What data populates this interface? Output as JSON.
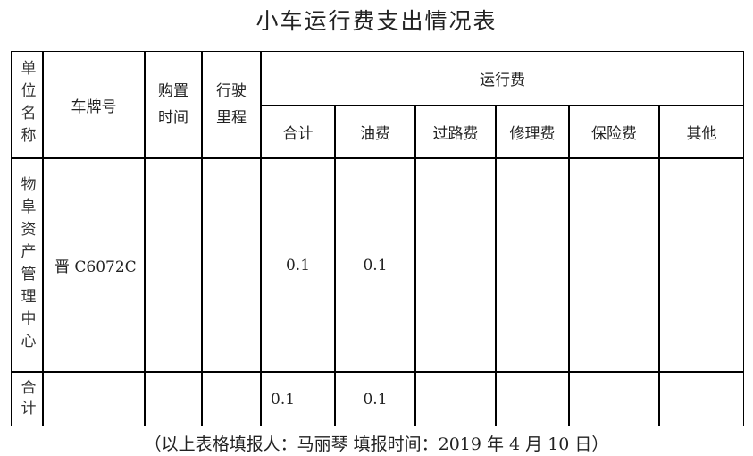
{
  "title": "小车运行费支出情况表",
  "headers": {
    "unit_name": "单位名称",
    "plate": "车牌号",
    "purchase_time": [
      "购置",
      "时间"
    ],
    "mileage": [
      "行驶",
      "里程"
    ],
    "operating_cost": "运行费",
    "sub": [
      "合计",
      "油费",
      "过路费",
      "修理费",
      "保险费",
      "其他"
    ]
  },
  "rows": [
    {
      "unit": "物阜资产管理中心",
      "plate": "晋 C6072C",
      "purchase_time": "",
      "mileage": "",
      "total": "0.1",
      "fuel": "0.1",
      "toll": "",
      "repair": "",
      "insurance": "",
      "other": ""
    }
  ],
  "summary": {
    "label": "合计",
    "total": "0.1",
    "fuel": "0.1"
  },
  "footer": "（以上表格填报人：马丽琴 填报时间：2019 年 4 月 10 日）"
}
